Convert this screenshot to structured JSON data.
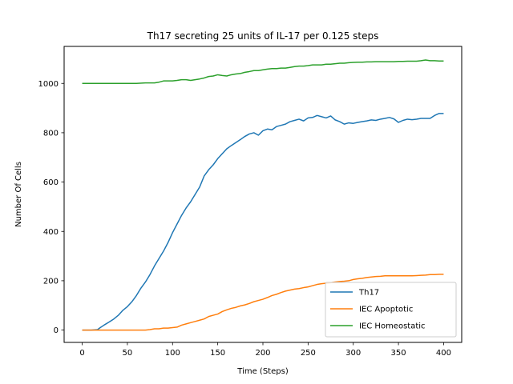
{
  "chart_data": {
    "type": "line",
    "title": "Th17 secreting 25 units of IL-17 per 0.125 steps",
    "xlabel": "Time (Steps)",
    "ylabel": "Number Of Cells",
    "xlim": [
      -20,
      420
    ],
    "ylim": [
      -50,
      1150
    ],
    "xticks": [
      0,
      50,
      100,
      150,
      200,
      250,
      300,
      350,
      400
    ],
    "yticks": [
      0,
      200,
      400,
      600,
      800,
      1000
    ],
    "grid": false,
    "legend_position": "lower-right",
    "series": [
      {
        "name": "Th17",
        "color": "#1f77b4",
        "x": [
          0,
          10,
          17,
          20,
          25,
          30,
          35,
          40,
          45,
          50,
          55,
          60,
          65,
          70,
          75,
          80,
          85,
          90,
          95,
          100,
          105,
          110,
          115,
          120,
          125,
          130,
          135,
          140,
          145,
          150,
          155,
          160,
          165,
          170,
          175,
          180,
          185,
          190,
          195,
          200,
          205,
          210,
          215,
          220,
          225,
          230,
          235,
          240,
          245,
          250,
          255,
          260,
          265,
          270,
          275,
          280,
          285,
          290,
          295,
          300,
          305,
          310,
          315,
          320,
          325,
          330,
          335,
          340,
          345,
          350,
          355,
          360,
          365,
          370,
          375,
          380,
          385,
          390,
          395,
          400
        ],
        "values": [
          0,
          0,
          2,
          10,
          22,
          33,
          45,
          60,
          80,
          95,
          115,
          140,
          170,
          195,
          225,
          260,
          290,
          320,
          355,
          395,
          430,
          465,
          495,
          520,
          550,
          580,
          625,
          650,
          670,
          695,
          715,
          735,
          748,
          760,
          772,
          785,
          795,
          800,
          790,
          808,
          815,
          812,
          825,
          830,
          835,
          845,
          850,
          855,
          848,
          860,
          862,
          870,
          865,
          860,
          868,
          852,
          845,
          835,
          840,
          838,
          842,
          845,
          848,
          852,
          850,
          855,
          858,
          862,
          856,
          842,
          850,
          855,
          853,
          855,
          858,
          858,
          858,
          870,
          878,
          878
        ]
      },
      {
        "name": "IEC Apoptotic",
        "color": "#ff7f0e",
        "x": [
          0,
          20,
          40,
          60,
          70,
          75,
          80,
          85,
          90,
          95,
          100,
          105,
          110,
          115,
          120,
          125,
          130,
          135,
          140,
          145,
          150,
          155,
          160,
          165,
          170,
          175,
          180,
          185,
          190,
          195,
          200,
          205,
          210,
          215,
          220,
          225,
          230,
          235,
          240,
          245,
          250,
          255,
          260,
          265,
          270,
          275,
          280,
          285,
          290,
          295,
          300,
          305,
          310,
          315,
          320,
          325,
          330,
          335,
          340,
          345,
          350,
          355,
          360,
          365,
          370,
          375,
          380,
          385,
          390,
          395,
          400
        ],
        "values": [
          0,
          0,
          0,
          0,
          0,
          2,
          5,
          5,
          8,
          8,
          10,
          12,
          20,
          25,
          30,
          35,
          40,
          45,
          55,
          60,
          65,
          75,
          82,
          88,
          92,
          98,
          102,
          108,
          115,
          120,
          125,
          132,
          140,
          145,
          152,
          158,
          162,
          166,
          168,
          172,
          175,
          180,
          185,
          188,
          190,
          192,
          195,
          197,
          198,
          200,
          205,
          208,
          210,
          213,
          215,
          217,
          218,
          220,
          220,
          220,
          220,
          220,
          220,
          220,
          221,
          222,
          223,
          225,
          225,
          226,
          226
        ]
      },
      {
        "name": "IEC Homeostatic",
        "color": "#2ca02c",
        "x": [
          0,
          20,
          40,
          60,
          70,
          75,
          80,
          85,
          90,
          95,
          100,
          105,
          110,
          115,
          120,
          125,
          130,
          135,
          140,
          145,
          150,
          155,
          160,
          165,
          170,
          175,
          180,
          185,
          190,
          195,
          200,
          205,
          210,
          215,
          220,
          225,
          230,
          235,
          240,
          245,
          250,
          255,
          260,
          265,
          270,
          275,
          280,
          285,
          290,
          295,
          300,
          305,
          310,
          315,
          320,
          325,
          330,
          335,
          340,
          345,
          350,
          355,
          360,
          365,
          370,
          375,
          380,
          385,
          390,
          395,
          400
        ],
        "values": [
          1000,
          1000,
          1000,
          1000,
          1002,
          1002,
          1002,
          1005,
          1010,
          1010,
          1010,
          1012,
          1015,
          1015,
          1012,
          1015,
          1018,
          1022,
          1028,
          1030,
          1035,
          1032,
          1030,
          1035,
          1038,
          1040,
          1045,
          1048,
          1052,
          1052,
          1055,
          1058,
          1060,
          1060,
          1062,
          1062,
          1065,
          1068,
          1070,
          1070,
          1072,
          1075,
          1075,
          1075,
          1078,
          1078,
          1080,
          1082,
          1082,
          1084,
          1085,
          1086,
          1086,
          1087,
          1087,
          1088,
          1088,
          1088,
          1088,
          1088,
          1089,
          1089,
          1090,
          1090,
          1090,
          1092,
          1095,
          1092,
          1092,
          1091,
          1091
        ]
      }
    ]
  }
}
